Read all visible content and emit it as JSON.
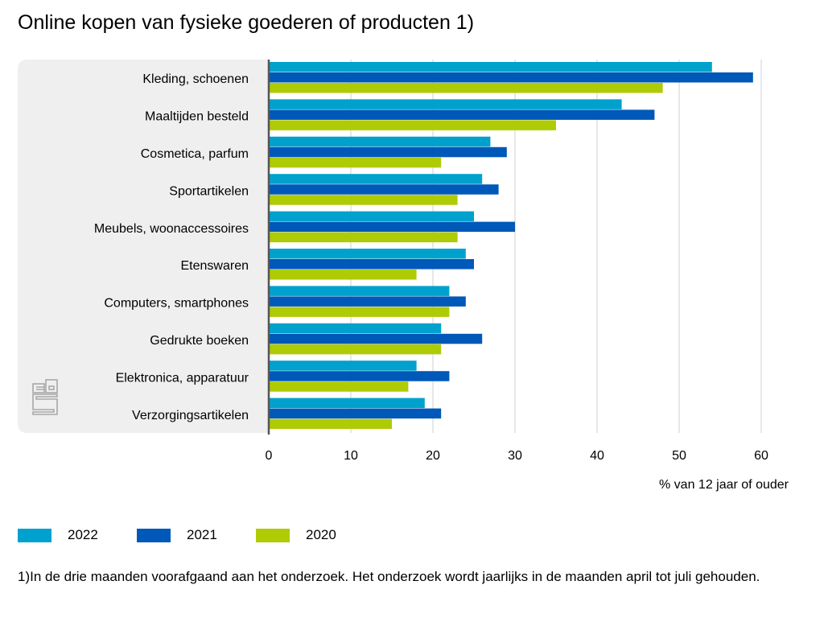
{
  "chart_data": {
    "type": "bar",
    "orientation": "horizontal",
    "title": "Online kopen van fysieke goederen of producten 1)",
    "xlabel": "% van 12 jaar of ouder",
    "ylabel": "",
    "xlim": [
      0,
      60
    ],
    "ticks": [
      "0",
      "10",
      "20",
      "30",
      "40",
      "50",
      "60"
    ],
    "grid": true,
    "categories": [
      "Kleding, schoenen",
      "Maaltijden besteld",
      "Cosmetica, parfum",
      "Sportartikelen",
      "Meubels, woonaccessoires",
      "Etenswaren",
      "Computers, smartphones",
      "Gedrukte boeken",
      "Elektronica, apparatuur",
      "Verzorgingsartikelen"
    ],
    "series": [
      {
        "name": "2022",
        "color": "#00a1cd",
        "values": [
          54,
          43,
          27,
          26,
          25,
          24,
          22,
          21,
          18,
          19
        ]
      },
      {
        "name": "2021",
        "color": "#0058b8",
        "values": [
          59,
          47,
          29,
          28,
          30,
          25,
          24,
          26,
          22,
          21
        ]
      },
      {
        "name": "2020",
        "color": "#afcb05",
        "values": [
          48,
          35,
          21,
          23,
          23,
          18,
          22,
          21,
          17,
          15
        ]
      }
    ],
    "legend_placement": "bottom-left",
    "footnote": "1)In de drie maanden voorafgaand aan het onderzoek. Het onderzoek wordt jaarlijks in de maanden april tot juli gehouden."
  }
}
